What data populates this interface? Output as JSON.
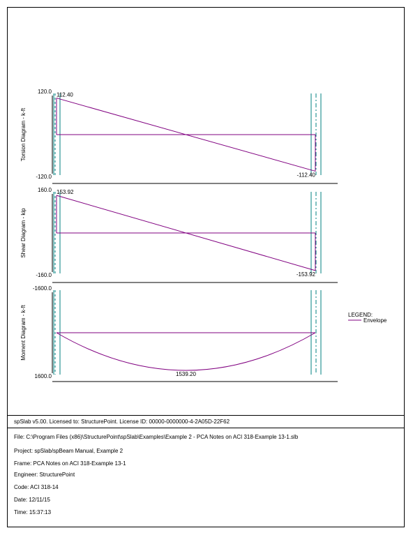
{
  "colors": {
    "diagram": "#800080",
    "support": "#008080",
    "frame": "#000000"
  },
  "diagrams": [
    {
      "key": "torsion",
      "axis_title": "Torsion Diagram - k-ft",
      "y_top_label": "120.0",
      "y_bottom_label": "-120.0",
      "start_value": 112.4,
      "end_value": -112.4,
      "start_label": "112.40",
      "end_label": "-112.40",
      "ylim": [
        -120.0,
        120.0
      ]
    },
    {
      "key": "shear",
      "axis_title": "Shear Diagram - kip",
      "y_top_label": "160.0",
      "y_bottom_label": "-160.0",
      "start_value": 153.92,
      "end_value": -153.92,
      "start_label": "153.92",
      "end_label": "-153.92",
      "ylim": [
        -160.0,
        160.0
      ]
    },
    {
      "key": "moment",
      "axis_title": "Moment Diagram - k-ft",
      "y_top_label": "-1600.0",
      "y_bottom_label": "1600.0",
      "mid_value": 1539.2,
      "mid_label": "1539.20",
      "ylim": [
        -1600.0,
        1600.0
      ]
    }
  ],
  "legend": {
    "title": "LEGEND:",
    "series": "Envelope"
  },
  "license_line": "spSlab v5.00. Licensed to: StructurePoint. License ID: 00000-0000000-4-2A05D-22F62",
  "info": [
    "File: C:\\Program Files (x86)\\StructurePoint\\spSlab\\Examples\\Example 2 - PCA Notes on ACI 318-Example 13-1.slb",
    "Project: spSlab/spBeam Manual, Example 2",
    "Frame: PCA Notes on ACI 318-Example 13-1",
    "Engineer: StructurePoint",
    "Code: ACI 318-14",
    "Date: 12/11/15",
    "Time: 15:37:13"
  ]
}
